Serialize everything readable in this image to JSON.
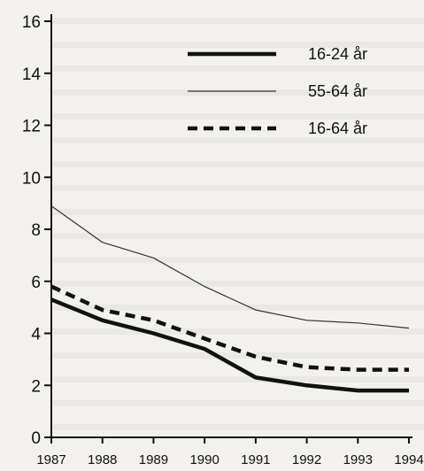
{
  "chart_data": {
    "type": "line",
    "title": "",
    "xlabel": "",
    "ylabel": "",
    "x": [
      1987,
      1988,
      1989,
      1990,
      1991,
      1992,
      1993,
      1994
    ],
    "x_tick_labels": [
      "1987",
      "1988",
      "1989",
      "1990",
      "1991",
      "1992",
      "1993",
      "1994"
    ],
    "y_ticks": [
      0,
      2,
      4,
      6,
      8,
      10,
      12,
      14,
      16
    ],
    "y_tick_labels": [
      "0",
      "2",
      "4",
      "6",
      "8",
      "10",
      "12",
      "14",
      "16"
    ],
    "ylim": [
      0,
      16
    ],
    "grid": false,
    "legend_position": "top-right",
    "series": [
      {
        "name": "16-24 år",
        "style": "solid-thick",
        "color": "#111111",
        "values": [
          5.3,
          4.5,
          4.0,
          3.4,
          2.3,
          2.0,
          1.8,
          1.8
        ]
      },
      {
        "name": "55-64 år",
        "style": "solid-thin",
        "color": "#333333",
        "values": [
          8.9,
          7.5,
          6.9,
          5.8,
          4.9,
          4.5,
          4.4,
          4.2
        ]
      },
      {
        "name": "16-64 år",
        "style": "dashed-thick",
        "color": "#111111",
        "values": [
          5.8,
          4.9,
          4.5,
          3.8,
          3.1,
          2.7,
          2.6,
          2.6
        ]
      }
    ]
  }
}
